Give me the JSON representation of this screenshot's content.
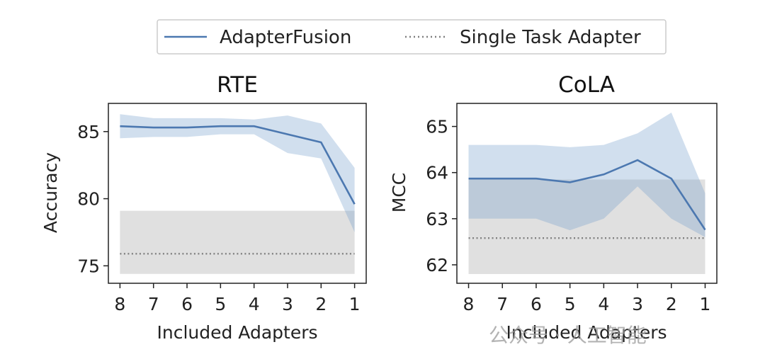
{
  "legend": {
    "items": [
      {
        "label": "AdapterFusion",
        "style": "solid",
        "color": "#4c78b0"
      },
      {
        "label": "Single Task Adapter",
        "style": "dotted",
        "color": "#808080"
      }
    ],
    "placement": "top-center"
  },
  "chart_data": [
    {
      "type": "line",
      "title": "RTE",
      "xlabel": "Included Adapters",
      "ylabel": "Accuracy",
      "x": [
        8,
        7,
        6,
        5,
        4,
        3,
        2,
        1
      ],
      "xticks": [
        "8",
        "7",
        "6",
        "5",
        "4",
        "3",
        "2",
        "1"
      ],
      "yticks": [
        75,
        80,
        85
      ],
      "ylim": [
        73.7,
        87.1
      ],
      "series": [
        {
          "name": "AdapterFusion",
          "values": [
            85.4,
            85.3,
            85.3,
            85.4,
            85.4,
            84.8,
            84.2,
            79.6
          ],
          "band_upper": [
            86.3,
            86.0,
            86.0,
            86.0,
            85.9,
            86.2,
            85.6,
            82.3
          ],
          "band_lower": [
            84.5,
            84.6,
            84.6,
            84.8,
            84.8,
            83.4,
            83.0,
            77.5
          ]
        }
      ],
      "baseline": {
        "name": "Single Task Adapter",
        "value": 75.9,
        "band": [
          74.4,
          79.1
        ]
      }
    },
    {
      "type": "line",
      "title": "CoLA",
      "xlabel": "Included Adapters",
      "ylabel": "MCC",
      "x": [
        8,
        7,
        6,
        5,
        4,
        3,
        2,
        1
      ],
      "xticks": [
        "8",
        "7",
        "6",
        "5",
        "4",
        "3",
        "2",
        "1"
      ],
      "yticks": [
        62,
        63,
        64,
        65
      ],
      "ylim": [
        61.6,
        65.5
      ],
      "series": [
        {
          "name": "AdapterFusion",
          "values": [
            63.87,
            63.87,
            63.87,
            63.79,
            63.96,
            64.27,
            63.87,
            62.76
          ],
          "band_upper": [
            64.6,
            64.6,
            64.6,
            64.55,
            64.6,
            64.85,
            65.3,
            63.55
          ],
          "band_lower": [
            63.0,
            63.0,
            63.0,
            62.75,
            63.0,
            63.7,
            63.0,
            62.6
          ]
        }
      ],
      "baseline": {
        "name": "Single Task Adapter",
        "value": 62.58,
        "band": [
          61.8,
          63.85
        ]
      }
    }
  ],
  "watermark": "公众号 · 人工智能"
}
